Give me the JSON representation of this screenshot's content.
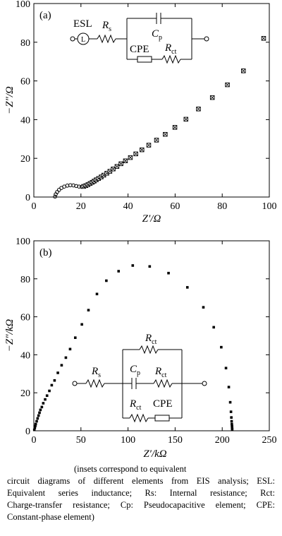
{
  "chart_data": [
    {
      "type": "scatter",
      "panel_label": "(a)",
      "xlabel": "Z′/Ω",
      "ylabel": "−Z″/Ω",
      "xlim": [
        0,
        100
      ],
      "ylim": [
        0,
        100
      ],
      "xticks": [
        "0",
        "20",
        "40",
        "60",
        "80",
        "100"
      ],
      "yticks": [
        "0",
        "20",
        "40",
        "60",
        "80",
        "100"
      ],
      "marker": "crossed-square",
      "semicircle": [
        [
          9.0,
          0.2
        ],
        [
          9.3,
          1.4
        ],
        [
          9.9,
          2.6
        ],
        [
          10.7,
          3.7
        ],
        [
          11.7,
          4.7
        ],
        [
          12.9,
          5.4
        ],
        [
          14.2,
          5.9
        ],
        [
          15.5,
          6.1
        ],
        [
          16.8,
          6.0
        ],
        [
          18.0,
          5.7
        ],
        [
          19.2,
          5.4
        ],
        [
          20.3,
          5.3
        ]
      ],
      "x": [
        21.2,
        22.1,
        23.0,
        23.9,
        24.8,
        25.6,
        26.5,
        27.5,
        28.6,
        29.7,
        31.0,
        32.3,
        33.7,
        35.3,
        37.0,
        38.9,
        41.0,
        43.3,
        45.9,
        48.8,
        52.1,
        55.8,
        59.9,
        64.6,
        69.9,
        75.8,
        82.2,
        89.0,
        97.6
      ],
      "y": [
        5.5,
        5.9,
        6.4,
        7.0,
        7.6,
        8.2,
        8.9,
        9.6,
        10.4,
        11.3,
        12.3,
        13.3,
        14.5,
        15.8,
        17.2,
        18.7,
        20.4,
        22.3,
        24.4,
        26.8,
        29.4,
        32.4,
        36.0,
        40.2,
        45.5,
        51.4,
        58.0,
        65.2,
        82.0
      ],
      "inset": {
        "esl": "ESL",
        "inductor": "L",
        "rs": "R",
        "rs_sub": "s",
        "cp": "C",
        "cp_sub": "p",
        "cpe": "CPE",
        "rct": "R",
        "rct_sub": "ct"
      }
    },
    {
      "type": "scatter",
      "panel_label": "(b)",
      "xlabel": "Z′/kΩ",
      "ylabel": "−Z″/kΩ",
      "xlim": [
        0,
        250
      ],
      "ylim": [
        0,
        100
      ],
      "xticks": [
        "0",
        "50",
        "100",
        "150",
        "200",
        "250"
      ],
      "yticks": [
        "0",
        "20",
        "40",
        "60",
        "80",
        "100"
      ],
      "marker": "square",
      "x": [
        0.5,
        1,
        1.5,
        2,
        3,
        4,
        5,
        6,
        7,
        8.5,
        10,
        12,
        14,
        16.5,
        19,
        22,
        25.5,
        29.5,
        34,
        38.5,
        44,
        51,
        58,
        67,
        77,
        90,
        105,
        123,
        143,
        163,
        180,
        191,
        199,
        204,
        207,
        208.5,
        209.3,
        209.7,
        210,
        210.2,
        210.4,
        210.5,
        210.6
      ],
      "y": [
        0.5,
        1.5,
        2.5,
        3.5,
        5,
        6.5,
        8,
        9.5,
        11,
        12.5,
        14.5,
        16.5,
        18.5,
        21,
        24,
        26.5,
        30.5,
        34.5,
        38.5,
        43,
        49,
        56,
        63.5,
        72,
        79,
        84,
        87,
        86.5,
        83,
        75.5,
        65,
        54.5,
        44,
        33,
        23,
        15,
        10,
        7,
        5,
        3.5,
        2.5,
        1.5,
        0.8
      ],
      "inset": {
        "rs": "R",
        "rs_sub": "s",
        "cp": "C",
        "cp_sub": "p",
        "cpe": "CPE",
        "rct": "R",
        "rct_sub": "ct"
      }
    }
  ],
  "caption": {
    "line1": "(insets correspond to equivalent",
    "line2": "circuit diagrams of different elements from EIS analysis; ESL:",
    "line3": "Equivalent series inductance; Rs: Internal resistance; Rct:",
    "line4": "Charge-transfer resistance; Cp: Pseudocapacitive element; CPE:",
    "line5": "Constant-phase element)"
  }
}
